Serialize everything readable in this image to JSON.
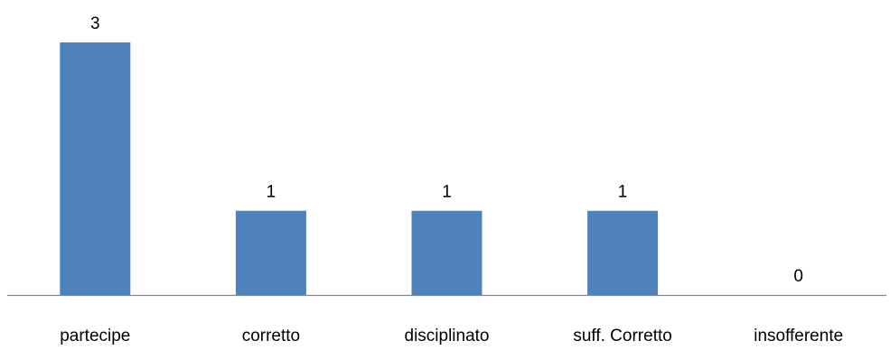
{
  "chart_data": {
    "type": "bar",
    "categories": [
      "partecipe",
      "corretto",
      "disciplinato",
      "suff. Corretto",
      "insofferente"
    ],
    "values": [
      3,
      1,
      1,
      1,
      0
    ],
    "data_labels": [
      "3",
      "1",
      "1",
      "1",
      "0"
    ],
    "title": "",
    "xlabel": "",
    "ylabel": "",
    "ylim": [
      0,
      3
    ],
    "grid": false,
    "legend": "none",
    "bar_color": "#4F81BD",
    "axis_color": "#868686"
  }
}
